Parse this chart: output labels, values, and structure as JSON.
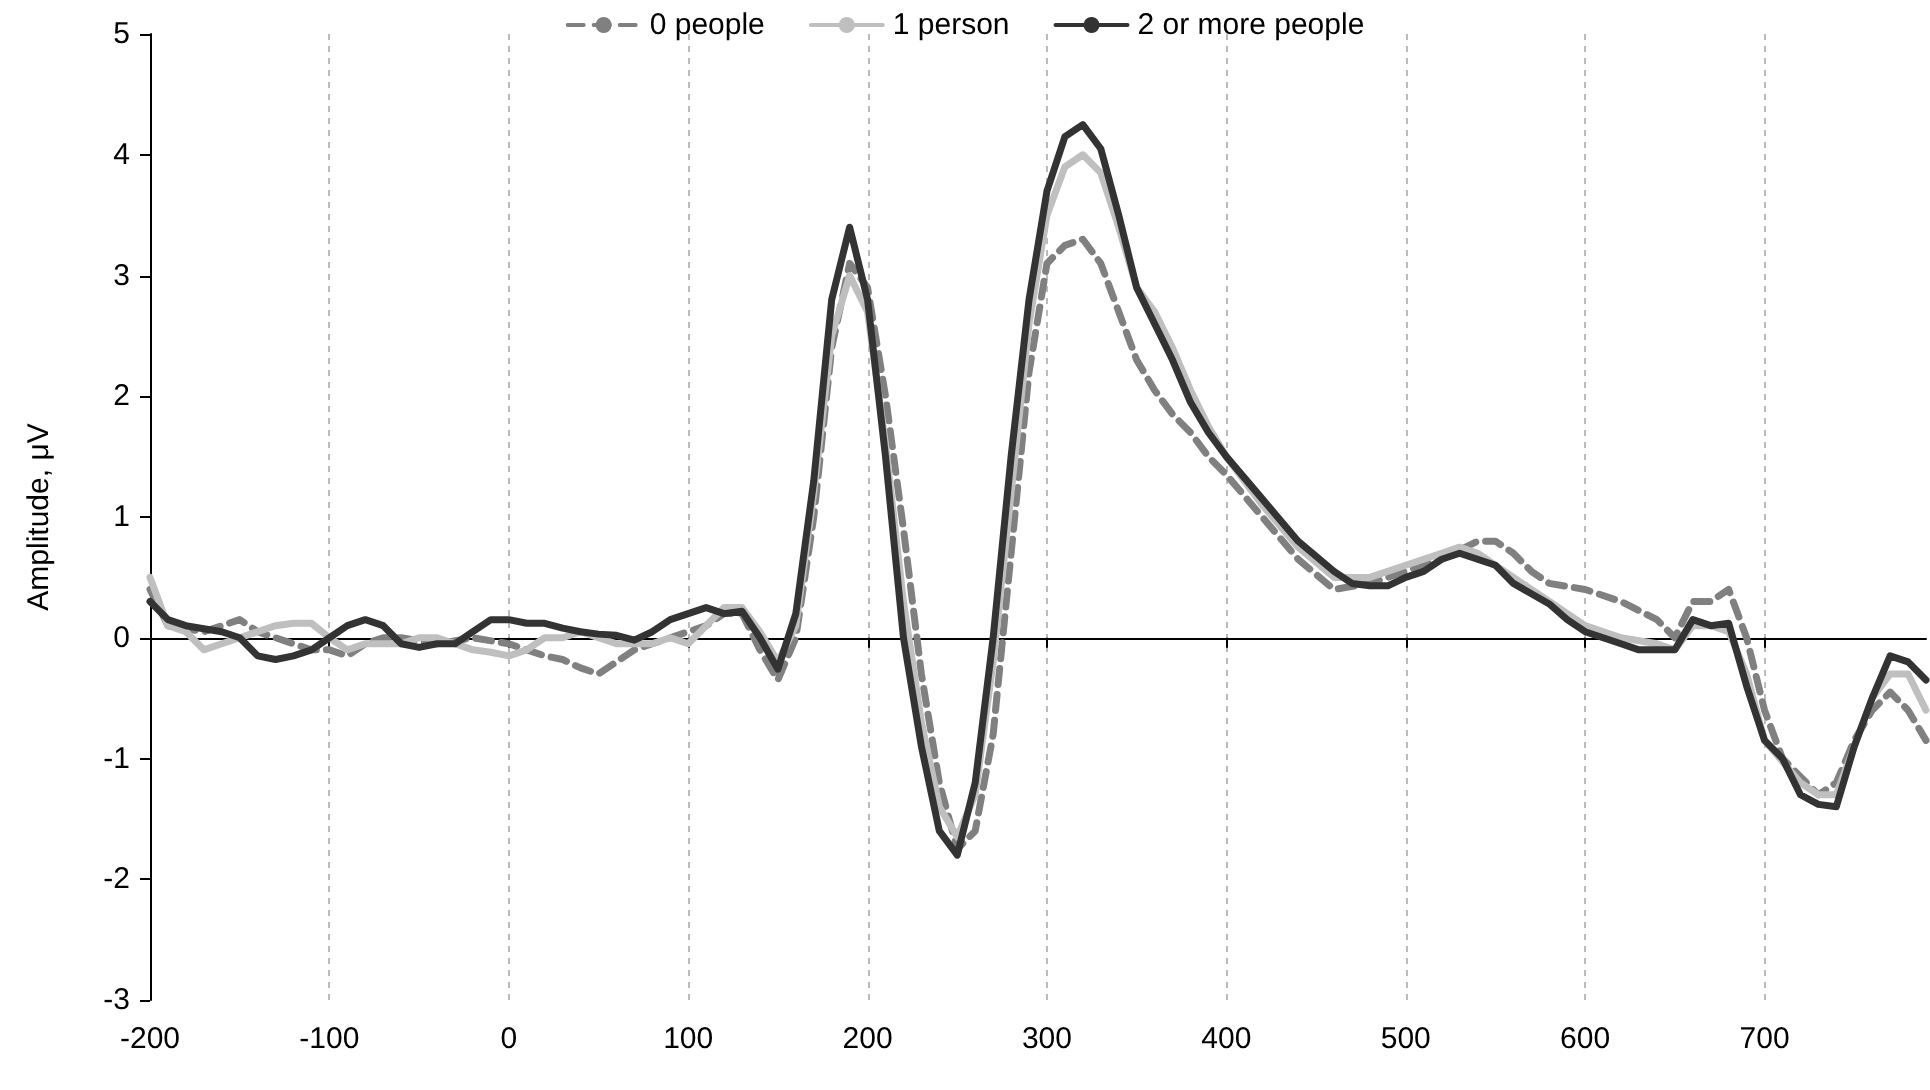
{
  "chart_data": {
    "type": "line",
    "ylabel": "Amplitude, μV",
    "xlim": [
      -200,
      790
    ],
    "xticks": [
      -200,
      -100,
      0,
      100,
      200,
      300,
      400,
      500,
      600,
      700
    ],
    "ylim": [
      -3,
      5
    ],
    "yticks": [
      -3,
      -2,
      -1,
      0,
      1,
      2,
      3,
      4,
      5
    ],
    "grid": "x",
    "legend": "top",
    "marker": "none",
    "series": [
      {
        "name": "0 people",
        "color": "#808080",
        "line_style": "dashed",
        "x": [
          -200,
          -190,
          -170,
          -160,
          -150,
          -140,
          -130,
          -120,
          -110,
          -100,
          -90,
          -80,
          -70,
          -60,
          -40,
          -20,
          0,
          10,
          20,
          30,
          40,
          50,
          60,
          70,
          80,
          90,
          100,
          110,
          120,
          130,
          140,
          150,
          160,
          170,
          180,
          190,
          200,
          210,
          220,
          230,
          240,
          250,
          260,
          270,
          280,
          290,
          300,
          310,
          320,
          330,
          340,
          350,
          360,
          370,
          380,
          390,
          400,
          420,
          440,
          460,
          480,
          500,
          520,
          540,
          550,
          560,
          570,
          580,
          600,
          620,
          640,
          650,
          660,
          670,
          680,
          690,
          700,
          710,
          720,
          730,
          740,
          750,
          760,
          770,
          780,
          790
        ],
        "values": [
          0.4,
          0.1,
          0.05,
          0.1,
          0.15,
          0.05,
          0.0,
          -0.05,
          -0.1,
          -0.1,
          -0.15,
          -0.05,
          0.0,
          0.0,
          -0.05,
          0.0,
          -0.05,
          -0.1,
          -0.15,
          -0.18,
          -0.25,
          -0.3,
          -0.2,
          -0.1,
          -0.05,
          0.0,
          0.05,
          0.1,
          0.2,
          0.2,
          -0.1,
          -0.35,
          0.0,
          1.0,
          2.4,
          3.1,
          2.9,
          2.0,
          0.9,
          -0.3,
          -1.2,
          -1.75,
          -1.6,
          -0.8,
          0.7,
          2.2,
          3.1,
          3.25,
          3.3,
          3.1,
          2.7,
          2.3,
          2.05,
          1.85,
          1.7,
          1.5,
          1.35,
          1.0,
          0.65,
          0.4,
          0.45,
          0.55,
          0.65,
          0.8,
          0.8,
          0.7,
          0.55,
          0.45,
          0.4,
          0.3,
          0.15,
          0.0,
          0.3,
          0.3,
          0.4,
          0.0,
          -0.6,
          -1.0,
          -1.15,
          -1.3,
          -1.2,
          -0.85,
          -0.6,
          -0.45,
          -0.6,
          -0.85
        ]
      },
      {
        "name": "1 person",
        "color": "#bfbfbf",
        "line_style": "solid",
        "x": [
          -200,
          -190,
          -180,
          -170,
          -160,
          -150,
          -140,
          -130,
          -120,
          -110,
          -100,
          -90,
          -80,
          -70,
          -60,
          -50,
          -40,
          -30,
          -20,
          -10,
          0,
          10,
          20,
          30,
          40,
          50,
          60,
          70,
          80,
          90,
          100,
          110,
          120,
          130,
          140,
          150,
          160,
          170,
          180,
          190,
          200,
          210,
          220,
          230,
          240,
          250,
          260,
          270,
          280,
          290,
          300,
          310,
          320,
          330,
          340,
          350,
          360,
          370,
          380,
          390,
          400,
          420,
          440,
          460,
          480,
          500,
          520,
          530,
          540,
          560,
          580,
          600,
          620,
          640,
          650,
          660,
          670,
          680,
          690,
          700,
          720,
          730,
          740,
          750,
          760,
          770,
          780,
          790
        ],
        "values": [
          0.5,
          0.1,
          0.05,
          -0.1,
          -0.05,
          0.0,
          0.05,
          0.1,
          0.12,
          0.12,
          0.0,
          -0.1,
          -0.05,
          -0.05,
          -0.05,
          0.0,
          0.0,
          -0.05,
          -0.1,
          -0.12,
          -0.15,
          -0.1,
          0.0,
          0.0,
          0.05,
          0.0,
          -0.05,
          -0.05,
          -0.05,
          0.0,
          -0.05,
          0.1,
          0.25,
          0.25,
          0.05,
          -0.2,
          0.1,
          1.2,
          2.5,
          3.0,
          2.7,
          1.6,
          0.3,
          -0.7,
          -1.4,
          -1.65,
          -1.3,
          -0.2,
          1.2,
          2.6,
          3.5,
          3.9,
          4.0,
          3.85,
          3.4,
          2.9,
          2.7,
          2.4,
          2.05,
          1.75,
          1.5,
          1.1,
          0.75,
          0.5,
          0.5,
          0.6,
          0.7,
          0.75,
          0.7,
          0.5,
          0.3,
          0.1,
          0.0,
          -0.05,
          -0.1,
          0.1,
          0.1,
          0.05,
          -0.3,
          -0.85,
          -1.2,
          -1.3,
          -1.3,
          -0.9,
          -0.5,
          -0.3,
          -0.3,
          -0.6
        ]
      },
      {
        "name": "2 or more people",
        "color": "#333333",
        "line_style": "solid",
        "x": [
          -200,
          -190,
          -180,
          -160,
          -150,
          -140,
          -130,
          -120,
          -110,
          -100,
          -90,
          -80,
          -70,
          -60,
          -50,
          -40,
          -30,
          -20,
          -10,
          0,
          10,
          20,
          30,
          40,
          50,
          60,
          70,
          80,
          90,
          100,
          110,
          120,
          130,
          140,
          150,
          160,
          170,
          180,
          190,
          200,
          210,
          220,
          230,
          240,
          250,
          260,
          270,
          280,
          290,
          300,
          310,
          320,
          330,
          340,
          350,
          360,
          370,
          380,
          390,
          400,
          420,
          440,
          460,
          470,
          480,
          490,
          500,
          510,
          520,
          530,
          540,
          550,
          560,
          580,
          590,
          600,
          610,
          620,
          630,
          640,
          650,
          660,
          670,
          680,
          690,
          700,
          710,
          720,
          730,
          740,
          750,
          760,
          770,
          780,
          790
        ],
        "values": [
          0.3,
          0.15,
          0.1,
          0.05,
          0.0,
          -0.15,
          -0.18,
          -0.15,
          -0.1,
          0.0,
          0.1,
          0.15,
          0.1,
          -0.05,
          -0.08,
          -0.05,
          -0.05,
          0.05,
          0.15,
          0.15,
          0.12,
          0.12,
          0.08,
          0.05,
          0.03,
          0.02,
          -0.02,
          0.05,
          0.15,
          0.2,
          0.25,
          0.2,
          0.22,
          0.0,
          -0.26,
          0.2,
          1.3,
          2.8,
          3.4,
          2.8,
          1.5,
          0.0,
          -0.9,
          -1.6,
          -1.8,
          -1.2,
          0.0,
          1.5,
          2.8,
          3.7,
          4.15,
          4.25,
          4.05,
          3.5,
          2.9,
          2.6,
          2.3,
          1.95,
          1.7,
          1.5,
          1.15,
          0.8,
          0.55,
          0.45,
          0.43,
          0.43,
          0.5,
          0.55,
          0.65,
          0.7,
          0.65,
          0.6,
          0.45,
          0.28,
          0.15,
          0.05,
          0.0,
          -0.05,
          -0.1,
          -0.1,
          -0.1,
          0.15,
          0.1,
          0.12,
          -0.4,
          -0.85,
          -1.0,
          -1.3,
          -1.38,
          -1.4,
          -0.9,
          -0.5,
          -0.15,
          -0.2,
          -0.35
        ]
      }
    ]
  }
}
